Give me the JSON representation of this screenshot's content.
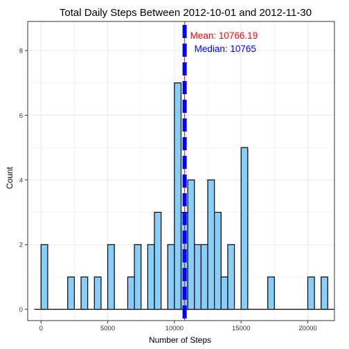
{
  "chart_data": {
    "type": "bar",
    "title": "Total Daily Steps Between 2012-10-01 and 2012-11-30",
    "xlabel": "Number of Steps",
    "ylabel": "Count",
    "xlim": [
      -1000,
      22000
    ],
    "ylim": [
      -0.35,
      8.9
    ],
    "x_ticks": [
      0,
      5000,
      10000,
      15000,
      20000
    ],
    "x_tick_labels": [
      "0",
      "5000",
      "10000",
      "15000",
      "20000"
    ],
    "y_ticks": [
      0,
      2,
      4,
      6,
      8
    ],
    "y_tick_labels": [
      "0",
      "2",
      "4",
      "6",
      "8"
    ],
    "grid": true,
    "bin_width": 500,
    "bins": [
      {
        "start": 0,
        "end": 500,
        "count": 2
      },
      {
        "start": 2000,
        "end": 2500,
        "count": 1
      },
      {
        "start": 3000,
        "end": 3500,
        "count": 1
      },
      {
        "start": 4000,
        "end": 4500,
        "count": 1
      },
      {
        "start": 5000,
        "end": 5500,
        "count": 2
      },
      {
        "start": 6500,
        "end": 7000,
        "count": 1
      },
      {
        "start": 7000,
        "end": 7500,
        "count": 2
      },
      {
        "start": 8000,
        "end": 8500,
        "count": 2
      },
      {
        "start": 8500,
        "end": 9000,
        "count": 3
      },
      {
        "start": 9500,
        "end": 10000,
        "count": 2
      },
      {
        "start": 10000,
        "end": 10500,
        "count": 7
      },
      {
        "start": 10500,
        "end": 11000,
        "count": 3
      },
      {
        "start": 11000,
        "end": 11500,
        "count": 4
      },
      {
        "start": 11500,
        "end": 12000,
        "count": 2
      },
      {
        "start": 12000,
        "end": 12500,
        "count": 2
      },
      {
        "start": 12500,
        "end": 13000,
        "count": 4
      },
      {
        "start": 13000,
        "end": 13500,
        "count": 3
      },
      {
        "start": 13500,
        "end": 14000,
        "count": 1
      },
      {
        "start": 14000,
        "end": 14500,
        "count": 2
      },
      {
        "start": 15000,
        "end": 15500,
        "count": 5
      },
      {
        "start": 17000,
        "end": 17500,
        "count": 1
      },
      {
        "start": 20000,
        "end": 20500,
        "count": 1
      },
      {
        "start": 21000,
        "end": 21500,
        "count": 1
      }
    ],
    "baseline": {
      "from": -500,
      "to": 22000
    },
    "reference_lines": [
      {
        "name": "Mean",
        "value": 10766.19,
        "label": "Mean: 10766.19",
        "color": "#ff0000",
        "style": "solid"
      },
      {
        "name": "Median",
        "value": 10765,
        "label": "Median: 10765",
        "color": "#0000ff",
        "style": "dashed"
      }
    ],
    "colors": {
      "bar_fill": "#87cefa",
      "bar_stroke": "#000000",
      "grid": "#ebebeb",
      "panel_border": "#333333"
    }
  }
}
